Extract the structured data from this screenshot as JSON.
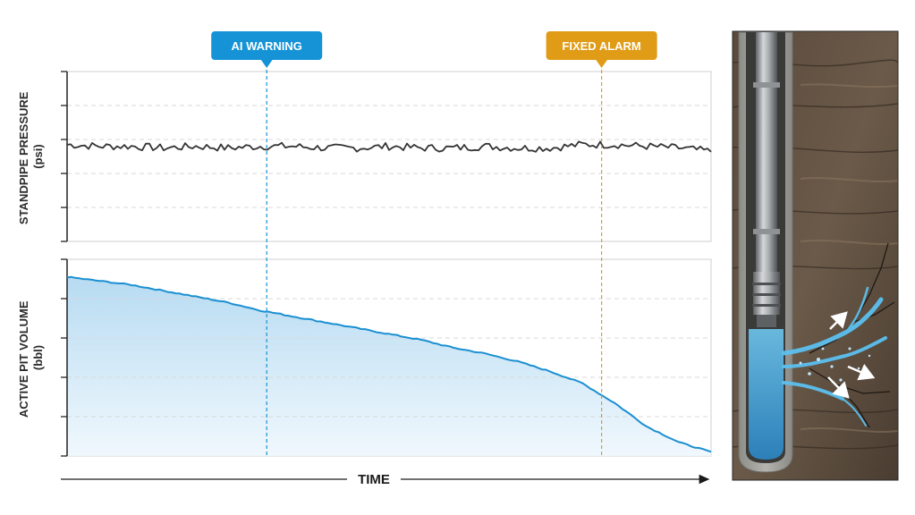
{
  "colors": {
    "warning": "#1593d6",
    "alarm": "#e09b17",
    "pressure_line": "#333333",
    "volume_line": "#1b8fd2",
    "volume_fill": "#bfe0f4"
  },
  "callouts": {
    "ai_warning": "AI WARNING",
    "fixed_alarm": "FIXED ALARM"
  },
  "time_axis": {
    "label": "TIME"
  },
  "chart_data": [
    {
      "type": "line",
      "ylabel": "STANDPIPE PRESSURE\n(psi)",
      "xlabel": "",
      "grid": true,
      "x": [
        0,
        5,
        10,
        15,
        20,
        25,
        30,
        35,
        40,
        45,
        50,
        55,
        60,
        65,
        70,
        75,
        80,
        85,
        90,
        95,
        100
      ],
      "series": [
        {
          "values": [
            0.57,
            0.56,
            0.56,
            0.55,
            0.56,
            0.55,
            0.56,
            0.56,
            0.55,
            0.55,
            0.56,
            0.55,
            0.55,
            0.56,
            0.55,
            0.55,
            0.57,
            0.57,
            0.56,
            0.55,
            0.53
          ]
        }
      ],
      "ylim": [
        0,
        1
      ]
    },
    {
      "type": "area",
      "ylabel": "ACTIVE PIT VOLUME\n(bbl)",
      "xlabel": "",
      "grid": true,
      "x": [
        0,
        5,
        10,
        15,
        20,
        25,
        30,
        35,
        40,
        45,
        50,
        55,
        60,
        65,
        70,
        75,
        80,
        85,
        90,
        95,
        100
      ],
      "series": [
        {
          "values": [
            0.91,
            0.89,
            0.87,
            0.84,
            0.81,
            0.78,
            0.74,
            0.71,
            0.68,
            0.65,
            0.62,
            0.59,
            0.55,
            0.52,
            0.48,
            0.43,
            0.37,
            0.27,
            0.15,
            0.07,
            0.02
          ]
        }
      ],
      "ylim": [
        0,
        1
      ]
    }
  ],
  "markers": [
    {
      "label_key": "ai_warning",
      "x": 31
    },
    {
      "label_key": "fixed_alarm",
      "x": 83
    }
  ]
}
